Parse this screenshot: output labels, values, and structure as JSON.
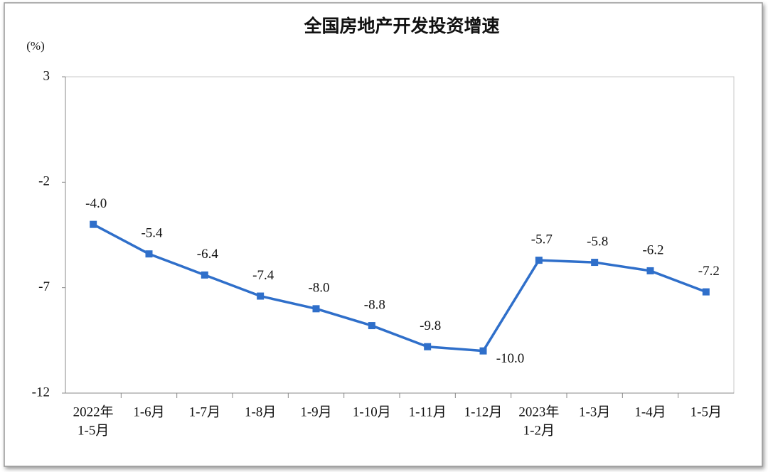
{
  "chart_data": {
    "type": "line",
    "title": "全国房地产开发投资增速",
    "y_unit": "(%)",
    "categories": [
      [
        "2022年",
        "1-5月"
      ],
      [
        "1-6月"
      ],
      [
        "1-7月"
      ],
      [
        "1-8月"
      ],
      [
        "1-9月"
      ],
      [
        "1-10月"
      ],
      [
        "1-11月"
      ],
      [
        "1-12月"
      ],
      [
        "2023年",
        "1-2月"
      ],
      [
        "1-3月"
      ],
      [
        "1-4月"
      ],
      [
        "1-5月"
      ]
    ],
    "series": [
      {
        "name": "全国房地产开发投资增速",
        "color": "#2f6fca",
        "values": [
          -4.0,
          -5.4,
          -6.4,
          -7.4,
          -8.0,
          -8.8,
          -9.8,
          -10.0,
          -5.7,
          -5.8,
          -6.2,
          -7.2
        ],
        "value_labels": [
          "-4.0",
          "-5.4",
          "-6.4",
          "-7.4",
          "-8.0",
          "-8.8",
          "-9.8",
          "-10.0",
          "-5.7",
          "-5.8",
          "-6.2",
          "-7.2"
        ]
      }
    ],
    "ylim": [
      -12,
      3
    ],
    "yticks": [
      -12,
      -7,
      -2,
      3
    ],
    "grid": false
  }
}
